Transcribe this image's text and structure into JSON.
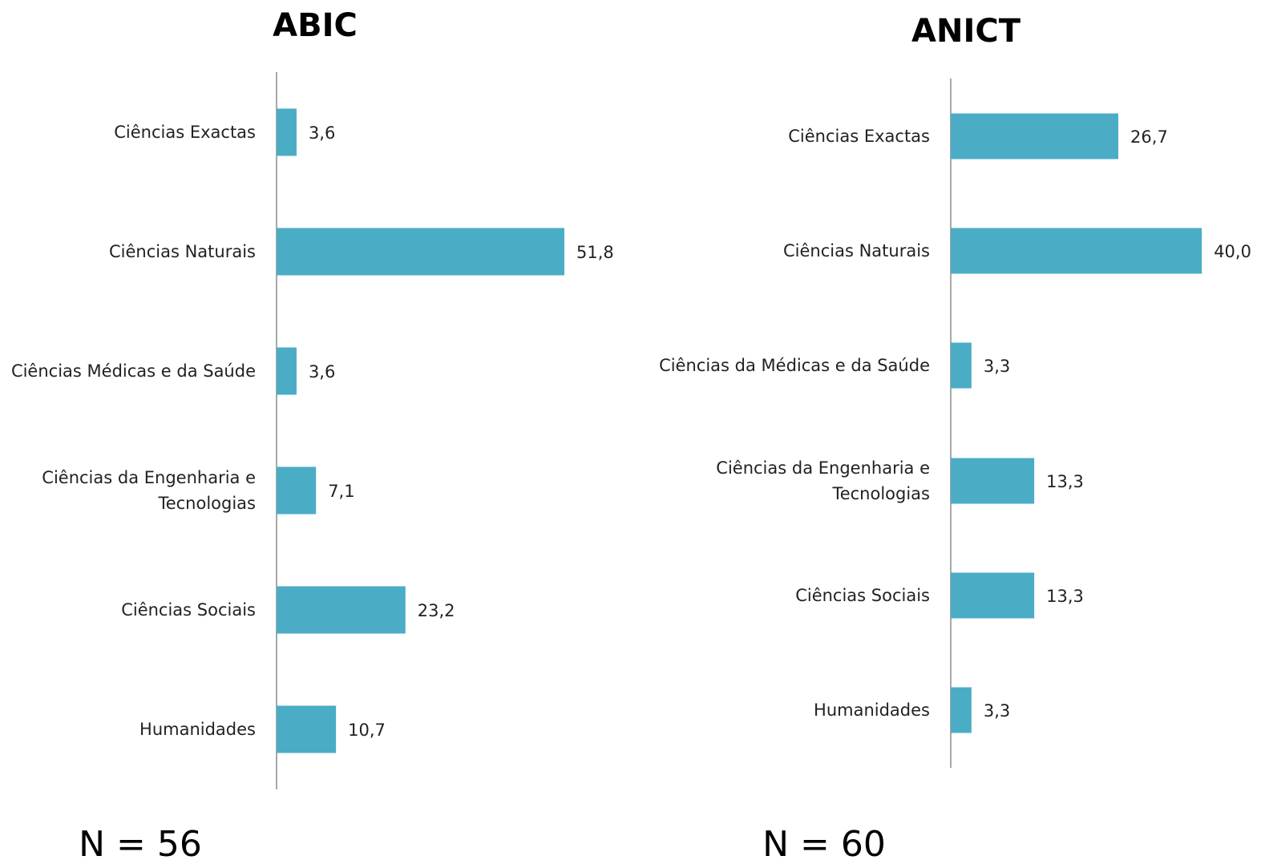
{
  "colors": {
    "bar": "#4bacc6",
    "axis": "#8c8c8c",
    "text": "#222222"
  },
  "chart_data": [
    {
      "type": "bar",
      "orientation": "horizontal",
      "title": "ABIC",
      "categories": [
        [
          "Ciências Exactas"
        ],
        [
          "Ciências Naturais"
        ],
        [
          "Ciências Médicas e da Saúde"
        ],
        [
          "Ciências da Engenharia e",
          "Tecnologias"
        ],
        [
          "Ciências Sociais"
        ],
        [
          "Humanidades"
        ]
      ],
      "values": [
        3.6,
        51.8,
        3.6,
        7.1,
        23.2,
        10.7
      ],
      "value_labels": [
        "3,6",
        "51,8",
        "3,6",
        "7,1",
        "23,2",
        "10,7"
      ],
      "footnote": "N = 56",
      "grid": false,
      "legend": "none"
    },
    {
      "type": "bar",
      "orientation": "horizontal",
      "title": "ANICT",
      "categories": [
        [
          "Ciências Exactas"
        ],
        [
          "Ciências Naturais"
        ],
        [
          "Ciências da Médicas e da Saúde"
        ],
        [
          "Ciências da Engenharia e",
          "Tecnologias"
        ],
        [
          "Ciências Sociais"
        ],
        [
          "Humanidades"
        ]
      ],
      "values": [
        26.7,
        40.0,
        3.3,
        13.3,
        13.3,
        3.3
      ],
      "value_labels": [
        "26,7",
        "40,0",
        "3,3",
        "13,3",
        "13,3",
        "3,3"
      ],
      "footnote": "N = 60",
      "grid": false,
      "legend": "none"
    }
  ]
}
